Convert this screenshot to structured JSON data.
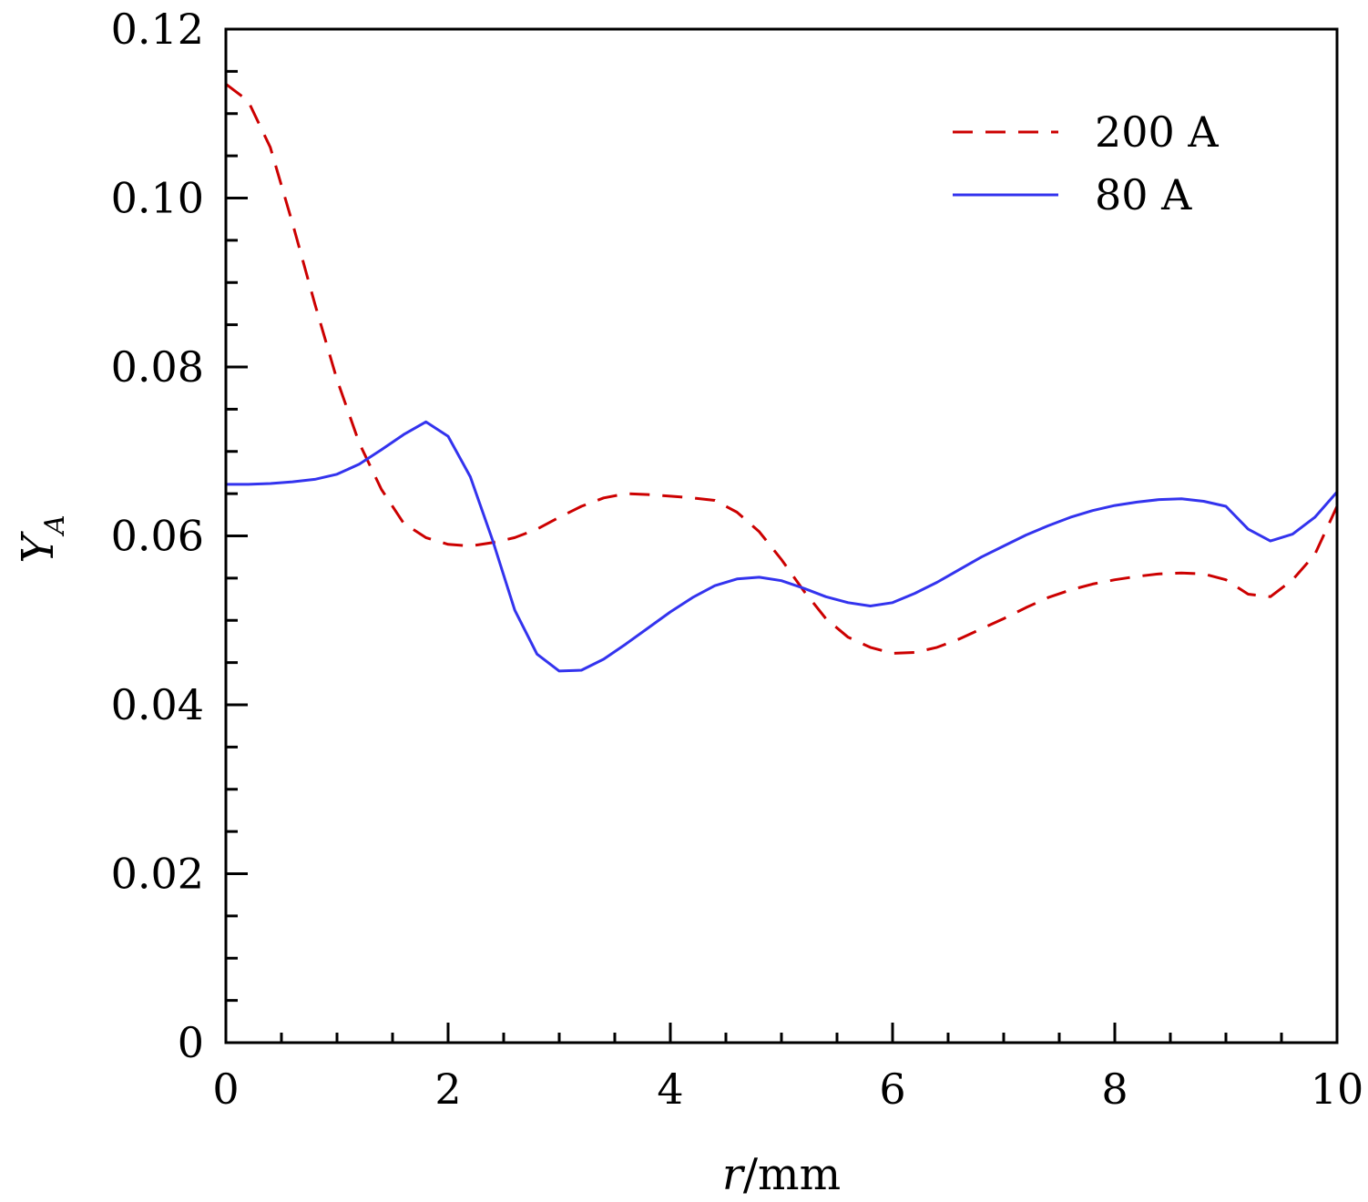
{
  "chart_data": {
    "type": "line",
    "title": "",
    "xlabel": {
      "var": "r",
      "unit": "/mm"
    },
    "ylabel": {
      "var": "Y",
      "sub": "A"
    },
    "xlim": [
      0,
      10
    ],
    "ylim": [
      0,
      0.12
    ],
    "x_ticks": [
      0,
      2,
      4,
      6,
      8,
      10
    ],
    "x_tick_labels": [
      "0",
      "2",
      "4",
      "6",
      "8",
      "10"
    ],
    "y_ticks": [
      0,
      0.02,
      0.04,
      0.06,
      0.08,
      0.1,
      0.12
    ],
    "y_tick_labels": [
      "0",
      "0.02",
      "0.04",
      "0.06",
      "0.08",
      "0.10",
      "0.12"
    ],
    "x_minor_step": 0.5,
    "y_minor_step": 0.005,
    "grid": false,
    "legend_position": "top-right",
    "series": [
      {
        "name": "200 A",
        "color": "#cc0000",
        "dash": "dashed",
        "x": [
          0,
          0.2,
          0.4,
          0.6,
          0.8,
          1.0,
          1.2,
          1.4,
          1.6,
          1.8,
          2.0,
          2.2,
          2.4,
          2.6,
          2.8,
          3.0,
          3.2,
          3.4,
          3.6,
          3.8,
          4.0,
          4.2,
          4.4,
          4.6,
          4.8,
          5.0,
          5.2,
          5.4,
          5.6,
          5.8,
          6.0,
          6.2,
          6.4,
          6.6,
          6.8,
          7.0,
          7.2,
          7.4,
          7.6,
          7.8,
          8.0,
          8.2,
          8.4,
          8.6,
          8.8,
          9.0,
          9.2,
          9.4,
          9.6,
          9.8,
          10.0
        ],
        "y": [
          0.1135,
          0.1115,
          0.106,
          0.097,
          0.0875,
          0.0785,
          0.071,
          0.0655,
          0.0615,
          0.0598,
          0.059,
          0.0588,
          0.0592,
          0.0598,
          0.0608,
          0.0622,
          0.0635,
          0.0645,
          0.065,
          0.0649,
          0.0647,
          0.0645,
          0.0642,
          0.0628,
          0.0605,
          0.0572,
          0.0535,
          0.0502,
          0.048,
          0.0468,
          0.0461,
          0.0462,
          0.0468,
          0.0478,
          0.049,
          0.0502,
          0.0515,
          0.0527,
          0.0536,
          0.0543,
          0.0548,
          0.0552,
          0.0555,
          0.0556,
          0.0555,
          0.0548,
          0.0531,
          0.0528,
          0.0548,
          0.0578,
          0.0635
        ]
      },
      {
        "name": "80 A",
        "color": "#3333ee",
        "dash": "solid",
        "x": [
          0,
          0.2,
          0.4,
          0.6,
          0.8,
          1.0,
          1.2,
          1.4,
          1.6,
          1.8,
          2.0,
          2.2,
          2.4,
          2.6,
          2.8,
          3.0,
          3.2,
          3.4,
          3.6,
          3.8,
          4.0,
          4.2,
          4.4,
          4.6,
          4.8,
          5.0,
          5.2,
          5.4,
          5.6,
          5.8,
          6.0,
          6.2,
          6.4,
          6.6,
          6.8,
          7.0,
          7.2,
          7.4,
          7.6,
          7.8,
          8.0,
          8.2,
          8.4,
          8.6,
          8.8,
          9.0,
          9.2,
          9.4,
          9.6,
          9.8,
          10.0
        ],
        "y": [
          0.0661,
          0.0661,
          0.0662,
          0.0664,
          0.0667,
          0.0673,
          0.0685,
          0.0702,
          0.072,
          0.0735,
          0.0718,
          0.067,
          0.0595,
          0.0512,
          0.046,
          0.044,
          0.0441,
          0.0454,
          0.0472,
          0.0491,
          0.051,
          0.0527,
          0.0541,
          0.0549,
          0.0551,
          0.0547,
          0.0538,
          0.0528,
          0.0521,
          0.0517,
          0.0521,
          0.0532,
          0.0545,
          0.056,
          0.0575,
          0.0588,
          0.0601,
          0.0612,
          0.0622,
          0.063,
          0.0636,
          0.064,
          0.0643,
          0.0644,
          0.0641,
          0.0635,
          0.0608,
          0.0594,
          0.0602,
          0.0622,
          0.0652
        ]
      }
    ]
  }
}
